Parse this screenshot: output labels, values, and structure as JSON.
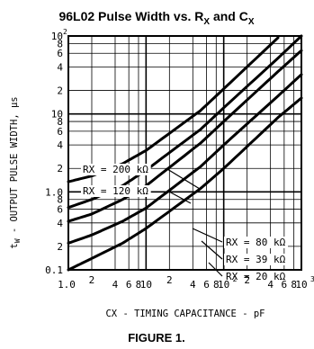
{
  "chart_data": {
    "type": "line",
    "title": {
      "main": "96L02 Pulse Width vs. R",
      "sub_r": "X",
      "mid": " and C",
      "sub_c": "X"
    },
    "caption": "FIGURE 1.",
    "xlabel": "CX - TIMING CAPACITANCE - pF",
    "ylabel": "t",
    "ylabel_sub": "W",
    "ylabel_rest": " - OUTPUT PULSE WIDTH, μs",
    "x_scale": "log",
    "y_scale": "log",
    "xlim": [
      1,
      1000
    ],
    "ylim": [
      0.1,
      100
    ],
    "grid": true,
    "x_tick_labels": {
      "t1": "1.0",
      "t2": "2",
      "t4": "4",
      "t6": "6",
      "t8": "8",
      "t10": "10",
      "t20": "2",
      "t40": "4",
      "t60": "6",
      "t80": "8",
      "t100": "10",
      "t100_exp": "2",
      "t200": "2",
      "t400": "4",
      "t600": "6",
      "t800": "8",
      "t1000": "10",
      "t1000_exp": "3"
    },
    "y_tick_labels": {
      "t01": "0.1",
      "t02": "2",
      "t04": "4",
      "t06": "6",
      "t08": "8",
      "t1": "1.0",
      "t2": "2",
      "t4": "4",
      "t6": "6",
      "t8": "8",
      "t10": "10",
      "t20": "2",
      "t40": "4",
      "t60": "6",
      "t80": "8",
      "t100": "10",
      "t100_exp": "2"
    },
    "series": [
      {
        "name": "RX = 200 kΩ",
        "x": [
          1,
          2,
          5,
          10,
          50,
          100,
          500,
          1000
        ],
        "y": [
          1.35,
          1.6,
          2.3,
          3.4,
          11,
          21,
          95,
          180
        ]
      },
      {
        "name": "RX = 120 kΩ",
        "x": [
          1,
          2,
          5,
          10,
          50,
          100,
          500,
          1000
        ],
        "y": [
          0.63,
          0.8,
          1.2,
          1.9,
          6.3,
          12,
          52,
          100
        ]
      },
      {
        "name": "RX = 80 kΩ",
        "x": [
          1,
          2,
          5,
          10,
          50,
          100,
          500,
          1000
        ],
        "y": [
          0.42,
          0.52,
          0.8,
          1.2,
          4.2,
          8,
          35,
          65
        ]
      },
      {
        "name": "RX = 39 kΩ",
        "x": [
          1,
          2,
          5,
          10,
          50,
          100,
          500,
          1000
        ],
        "y": [
          0.22,
          0.28,
          0.42,
          0.62,
          2.1,
          4,
          17,
          32
        ]
      },
      {
        "name": "RX = 20 kΩ",
        "x": [
          1,
          2,
          5,
          10,
          50,
          100,
          500,
          1000
        ],
        "y": [
          0.1,
          0.14,
          0.22,
          0.34,
          1.1,
          2,
          9,
          16
        ]
      }
    ]
  }
}
